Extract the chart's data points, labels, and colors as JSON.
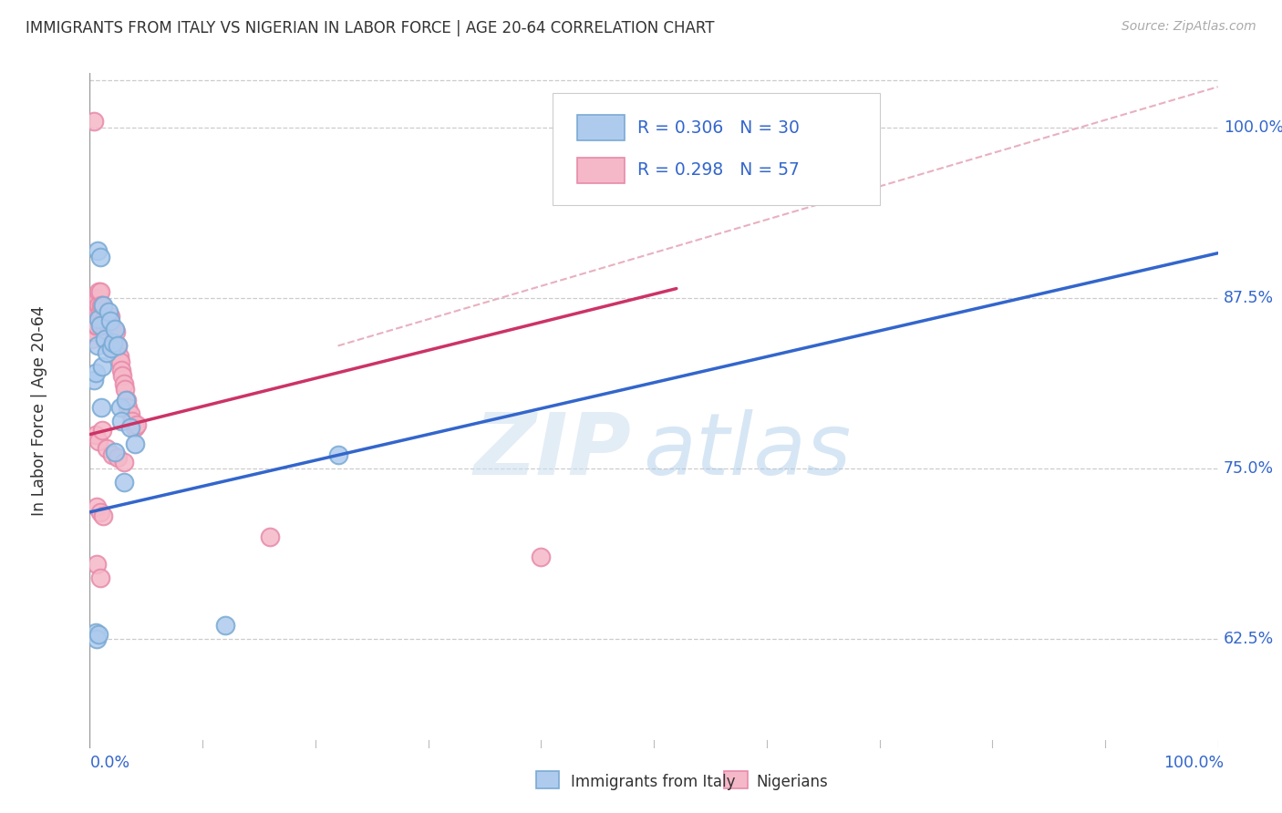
{
  "title": "IMMIGRANTS FROM ITALY VS NIGERIAN IN LABOR FORCE | AGE 20-64 CORRELATION CHART",
  "source": "Source: ZipAtlas.com",
  "ylabel": "In Labor Force | Age 20-64",
  "yticks": [
    0.625,
    0.75,
    0.875,
    1.0
  ],
  "ytick_labels": [
    "62.5%",
    "75.0%",
    "87.5%",
    "100.0%"
  ],
  "xtick_labels": [
    "0.0%",
    "100.0%"
  ],
  "italy_color": "#aecbee",
  "italy_edge": "#7aaad4",
  "nigeria_color": "#f5b8c8",
  "nigeria_edge": "#e88aaa",
  "line_italy_color": "#3366cc",
  "line_nigeria_color": "#cc3366",
  "dashed_color": "#e8b0c0",
  "legend_text_color": "#3366cc",
  "legend_R_italy": "R = 0.306",
  "legend_N_italy": "N = 30",
  "legend_R_nigeria": "R = 0.298",
  "legend_N_nigeria": "N = 57",
  "watermark_zip": "ZIP",
  "watermark_atlas": "atlas",
  "xmin": 0.0,
  "xmax": 1.0,
  "ymin": 0.545,
  "ymax": 1.04,
  "background_color": "#ffffff",
  "grid_color": "#cccccc",
  "title_color": "#333333",
  "italy_line_x0": 0.0,
  "italy_line_x1": 1.0,
  "italy_line_y0": 0.718,
  "italy_line_y1": 0.908,
  "nigeria_line_x0": 0.0,
  "nigeria_line_x1": 0.52,
  "nigeria_line_y0": 0.775,
  "nigeria_line_y1": 0.882,
  "dashed_line_x0": 0.22,
  "dashed_line_x1": 1.0,
  "dashed_line_y0": 0.84,
  "dashed_line_y1": 1.03,
  "italy_pts_x": [
    0.004,
    0.005,
    0.007,
    0.008,
    0.009,
    0.011,
    0.012,
    0.013,
    0.015,
    0.017,
    0.018,
    0.019,
    0.021,
    0.022,
    0.025,
    0.027,
    0.028,
    0.032,
    0.036,
    0.04,
    0.005,
    0.006,
    0.008,
    0.01,
    0.022,
    0.03,
    0.12,
    0.22,
    0.007,
    0.009
  ],
  "italy_pts_y": [
    0.815,
    0.82,
    0.84,
    0.86,
    0.855,
    0.825,
    0.87,
    0.845,
    0.835,
    0.865,
    0.858,
    0.838,
    0.842,
    0.852,
    0.84,
    0.795,
    0.785,
    0.8,
    0.78,
    0.768,
    0.63,
    0.625,
    0.628,
    0.795,
    0.762,
    0.74,
    0.635,
    0.76,
    0.91,
    0.905
  ],
  "nigeria_pts_x": [
    0.002,
    0.003,
    0.004,
    0.005,
    0.005,
    0.006,
    0.007,
    0.007,
    0.008,
    0.008,
    0.009,
    0.009,
    0.01,
    0.01,
    0.011,
    0.012,
    0.013,
    0.013,
    0.014,
    0.015,
    0.016,
    0.017,
    0.018,
    0.019,
    0.02,
    0.021,
    0.022,
    0.023,
    0.024,
    0.025,
    0.026,
    0.027,
    0.028,
    0.029,
    0.03,
    0.031,
    0.033,
    0.034,
    0.036,
    0.038,
    0.04,
    0.042,
    0.005,
    0.008,
    0.011,
    0.015,
    0.02,
    0.025,
    0.03,
    0.006,
    0.009,
    0.012,
    0.16,
    0.4,
    0.004,
    0.006,
    0.009
  ],
  "nigeria_pts_y": [
    0.845,
    0.85,
    0.86,
    0.855,
    0.87,
    0.855,
    0.865,
    0.875,
    0.88,
    0.87,
    0.865,
    0.88,
    0.87,
    0.855,
    0.87,
    0.858,
    0.862,
    0.852,
    0.86,
    0.857,
    0.848,
    0.855,
    0.862,
    0.855,
    0.852,
    0.838,
    0.842,
    0.85,
    0.838,
    0.84,
    0.832,
    0.828,
    0.822,
    0.818,
    0.812,
    0.808,
    0.8,
    0.795,
    0.79,
    0.785,
    0.78,
    0.782,
    0.775,
    0.77,
    0.778,
    0.765,
    0.76,
    0.758,
    0.755,
    0.722,
    0.718,
    0.715,
    0.7,
    0.685,
    1.005,
    0.68,
    0.67
  ]
}
